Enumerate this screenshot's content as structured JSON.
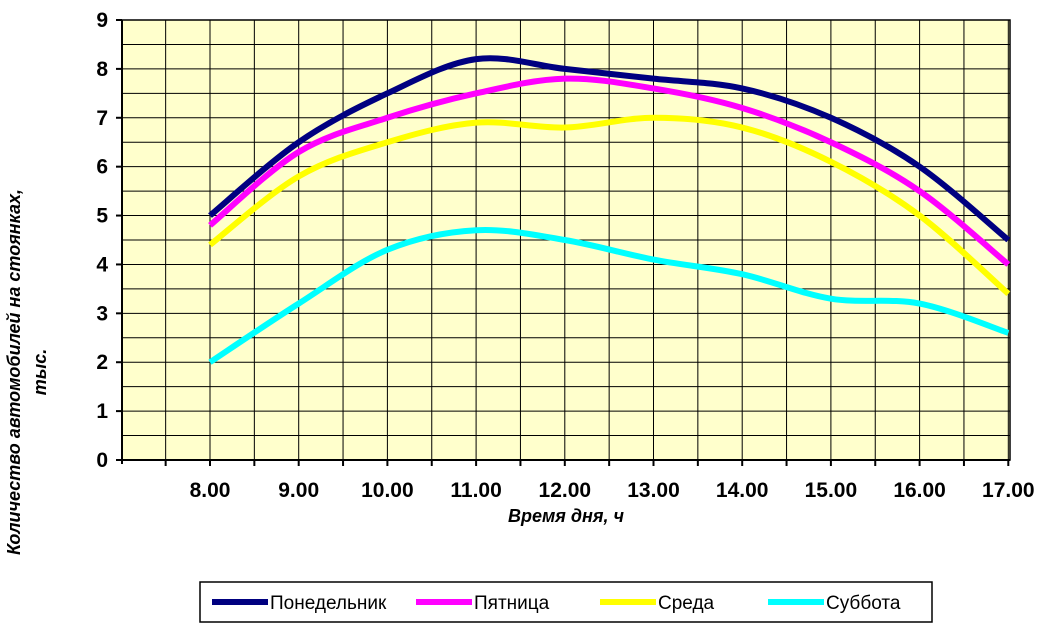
{
  "chart_data": {
    "type": "line",
    "xlabel": "Время дня, ч",
    "ylabel_lines": [
      "Количество автомобилей на стоянках,",
      "тыс."
    ],
    "categories": [
      "8.00",
      "9.00",
      "10.00",
      "11.00",
      "12.00",
      "13.00",
      "14.00",
      "15.00",
      "16.00",
      "17.00"
    ],
    "ylim": [
      0,
      9
    ],
    "yticks": [
      "0",
      "1",
      "2",
      "3",
      "4",
      "5",
      "6",
      "7",
      "8",
      "9"
    ],
    "grid": true,
    "legend_position": "bottom",
    "plot_background": "#ffffcc",
    "series": [
      {
        "name": "Понедельник",
        "color": "#000080",
        "values": [
          5.0,
          6.5,
          7.5,
          8.2,
          8.0,
          7.8,
          7.6,
          7.0,
          6.0,
          4.5
        ]
      },
      {
        "name": "Пятница",
        "color": "#ff00ff",
        "values": [
          4.8,
          6.3,
          7.0,
          7.5,
          7.8,
          7.6,
          7.2,
          6.5,
          5.5,
          4.0
        ]
      },
      {
        "name": "Среда",
        "color": "#ffff00",
        "values": [
          4.4,
          5.8,
          6.5,
          6.9,
          6.8,
          7.0,
          6.8,
          6.1,
          5.0,
          3.4
        ]
      },
      {
        "name": "Суббота",
        "color": "#00ffff",
        "values": [
          2.0,
          3.2,
          4.3,
          4.7,
          4.5,
          4.1,
          3.8,
          3.3,
          3.2,
          2.6
        ]
      }
    ]
  }
}
